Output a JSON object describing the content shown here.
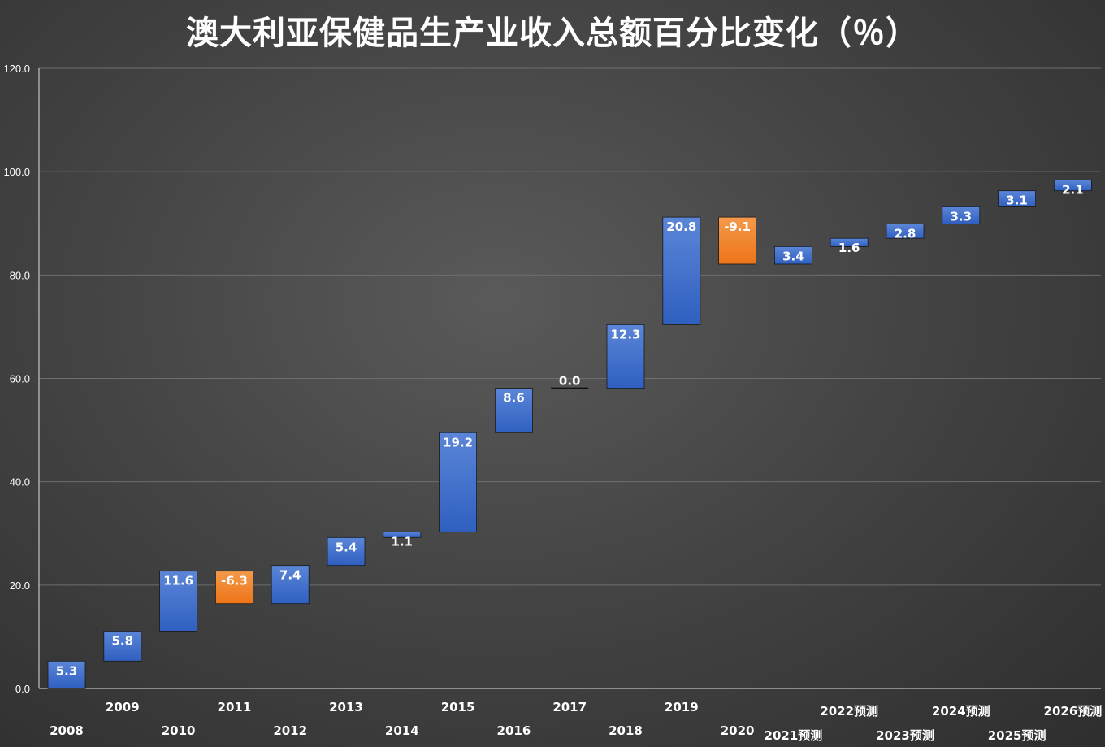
{
  "chart_data": {
    "type": "waterfall",
    "title": "澳大利亚保健品生产业收入总额百分比变化（％）",
    "xlabel": "",
    "ylabel": "",
    "ylim": [
      0,
      120
    ],
    "yticks": [
      "0.0",
      "20.0",
      "40.0",
      "60.0",
      "80.0",
      "100.0",
      "120.0"
    ],
    "grid": true,
    "legend": "none",
    "categories": [
      "2008",
      "2009",
      "2010",
      "2011",
      "2012",
      "2013",
      "2014",
      "2015",
      "2016",
      "2017",
      "2018",
      "2019",
      "2020",
      "2021预测",
      "2022预测",
      "2023预测",
      "2024预测",
      "2025预测",
      "2026预测"
    ],
    "values": [
      5.3,
      5.8,
      11.6,
      -6.3,
      7.4,
      5.4,
      1.1,
      19.2,
      8.6,
      0.0,
      12.3,
      20.8,
      -9.1,
      3.4,
      1.6,
      2.8,
      3.3,
      3.1,
      2.1
    ],
    "value_labels": [
      "5.3",
      "5.8",
      "11.6",
      "-6.3",
      "7.4",
      "5.4",
      "1.1",
      "19.2",
      "8.6",
      "0.0",
      "12.3",
      "20.8",
      "-9.1",
      "3.4",
      "1.6",
      "2.8",
      "3.3",
      "3.1",
      "2.1"
    ],
    "colors": {
      "increase": "#3366cc",
      "increase_light": "#5b86d8",
      "decrease": "#f07a23",
      "decrease_light": "#f49a4a",
      "zero": "#111111",
      "grid": "#6e6e6e",
      "axis": "#dddddd",
      "text": "#ffffff"
    }
  }
}
